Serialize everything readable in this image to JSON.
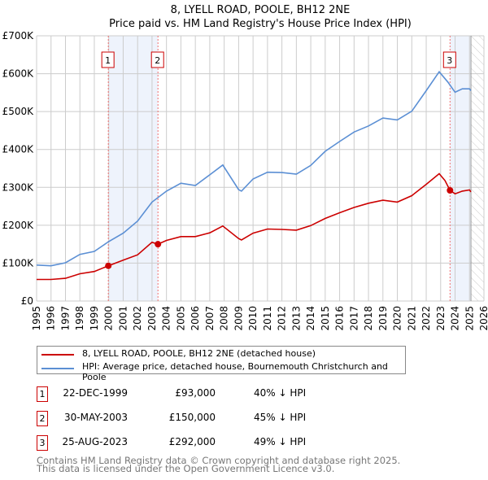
{
  "chart_data": {
    "type": "line",
    "title": "8, LYELL ROAD, POOLE, BH12 2NE",
    "subtitle": "Price paid vs. HM Land Registry's House Price Index (HPI)",
    "xlim": [
      1995,
      2026
    ],
    "ylim": [
      0,
      700000
    ],
    "grid": true,
    "y_ticks": [
      {
        "v": 0,
        "label": "£0"
      },
      {
        "v": 100000,
        "label": "£100K"
      },
      {
        "v": 200000,
        "label": "£200K"
      },
      {
        "v": 300000,
        "label": "£300K"
      },
      {
        "v": 400000,
        "label": "£400K"
      },
      {
        "v": 500000,
        "label": "£500K"
      },
      {
        "v": 600000,
        "label": "£600K"
      },
      {
        "v": 700000,
        "label": "£700K"
      }
    ],
    "x_ticks": [
      "1995",
      "1996",
      "1997",
      "1998",
      "1999",
      "2000",
      "2001",
      "2002",
      "2003",
      "2004",
      "2005",
      "2006",
      "2007",
      "2008",
      "2009",
      "2010",
      "2011",
      "2012",
      "2013",
      "2014",
      "2015",
      "2016",
      "2017",
      "2018",
      "2019",
      "2020",
      "2021",
      "2022",
      "2023",
      "2024",
      "2025",
      "2026"
    ],
    "shaded_ranges": [
      [
        1999.97,
        2003.41
      ],
      [
        2023.65,
        2025.1
      ]
    ],
    "forecast_hatch_from": 2025.1,
    "series": [
      {
        "name": "8, LYELL ROAD, POOLE, BH12 2NE (detached house)",
        "color": "#cc0000",
        "x": [
          1995,
          1996,
          1997,
          1998,
          1999,
          1999.97,
          2001,
          2002,
          2003,
          2003.41,
          2004,
          2005,
          2006,
          2007,
          2007.9,
          2009,
          2009.2,
          2010,
          2011,
          2012,
          2013,
          2014,
          2015,
          2016,
          2017,
          2018,
          2019,
          2020,
          2021,
          2022,
          2022.9,
          2023.3,
          2023.65,
          2024,
          2024.5,
          2025,
          2025.1
        ],
        "y": [
          57000,
          57000,
          60000,
          72000,
          78000,
          93000,
          108000,
          122000,
          155000,
          150000,
          160000,
          170000,
          170000,
          180000,
          198000,
          165000,
          161000,
          179000,
          190000,
          189000,
          187000,
          199000,
          218000,
          233000,
          247000,
          258000,
          266000,
          261000,
          278000,
          308000,
          336000,
          318000,
          292000,
          283000,
          290000,
          293000,
          288000
        ]
      },
      {
        "name": "HPI: Average price, detached house, Bournemouth Christchurch and Poole",
        "color": "#5b8fd4",
        "x": [
          1995,
          1996,
          1997,
          1998,
          1999,
          2000,
          2001,
          2002,
          2003,
          2004,
          2005,
          2006,
          2007,
          2007.9,
          2009,
          2009.2,
          2010,
          2011,
          2012,
          2013,
          2014,
          2015,
          2016,
          2017,
          2018,
          2019,
          2020,
          2021,
          2022,
          2022.9,
          2023.5,
          2024,
          2024.5,
          2025,
          2025.1
        ],
        "y": [
          95000,
          93000,
          101000,
          123000,
          131000,
          157000,
          179000,
          211000,
          261000,
          290000,
          311000,
          305000,
          333000,
          359000,
          294000,
          290000,
          322000,
          340000,
          339000,
          335000,
          358000,
          395000,
          421000,
          446000,
          462000,
          483000,
          478000,
          501000,
          555000,
          605000,
          578000,
          551000,
          560000,
          560000,
          555000
        ]
      }
    ],
    "sales": [
      {
        "n": "1",
        "x": 1999.97,
        "y": 93000
      },
      {
        "n": "2",
        "x": 2003.41,
        "y": 150000
      },
      {
        "n": "3",
        "x": 2023.65,
        "y": 292000
      }
    ]
  },
  "legend": {
    "property": "8, LYELL ROAD, POOLE, BH12 2NE (detached house)",
    "hpi": "HPI: Average price, detached house, Bournemouth Christchurch and Poole"
  },
  "transactions": [
    {
      "n": "1",
      "date": "22-DEC-1999",
      "price": "£93,000",
      "hpi": "40% ↓ HPI"
    },
    {
      "n": "2",
      "date": "30-MAY-2003",
      "price": "£150,000",
      "hpi": "45% ↓ HPI"
    },
    {
      "n": "3",
      "date": "25-AUG-2023",
      "price": "£292,000",
      "hpi": "49% ↓ HPI"
    }
  ],
  "footer": {
    "line1": "Contains HM Land Registry data © Crown copyright and database right 2025.",
    "line2": "This data is licensed under the Open Government Licence v3.0."
  },
  "colors": {
    "property": "#cc0000",
    "hpi": "#5b8fd4",
    "grid": "#cccccc",
    "shade": "#eef3fc"
  }
}
